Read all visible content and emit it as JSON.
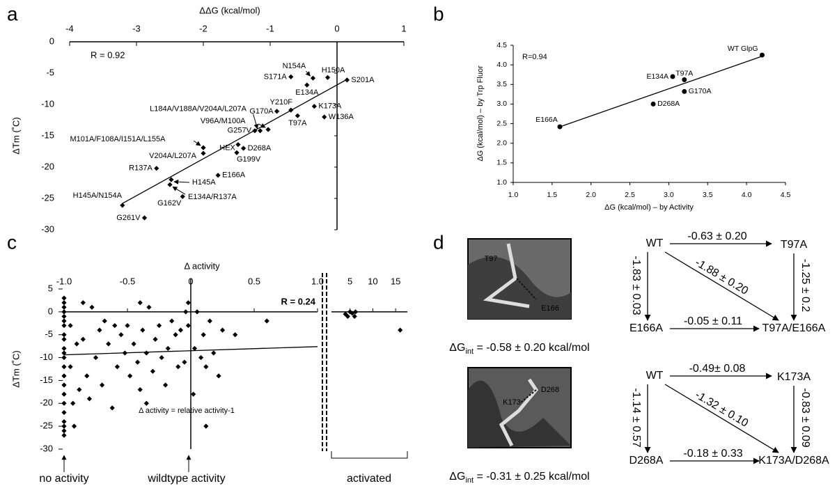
{
  "panel_labels": [
    "a",
    "b",
    "c",
    "d"
  ],
  "chart_data": [
    {
      "type": "scatter",
      "xlabel": "ΔΔG (kcal/mol)",
      "ylabel": "ΔTm (˚C)",
      "marker": "diamond",
      "color": "#000000",
      "xlim": [
        -4,
        1
      ],
      "xticks": [
        -4,
        -3,
        -2,
        -1,
        0,
        1
      ],
      "ylim": [
        -30,
        0
      ],
      "yticks": [
        0,
        -5,
        -10,
        -15,
        -20,
        -25,
        -30
      ],
      "x": [
        -0.36,
        -0.14,
        -0.69,
        0.15,
        -0.45,
        -0.34,
        -0.69,
        -0.9,
        -0.59,
        -0.19,
        -1.15,
        -1.03,
        -1.23,
        -2.0,
        -2.0,
        -1.48,
        -1.4,
        -1.5,
        -2.7,
        -1.78,
        -2.48,
        -2.5,
        -2.31,
        -3.21,
        -2.88
      ],
      "y": [
        -5.8,
        -5.7,
        -5.6,
        -6.1,
        -6.9,
        -10.3,
        -10.9,
        -11.1,
        -11.8,
        -12.0,
        -14.2,
        -14.0,
        -14.2,
        -16.9,
        -17.8,
        -16.4,
        -17.0,
        -17.7,
        -20.2,
        -21.3,
        -22.0,
        -22.8,
        -24.7,
        -26.1,
        -28.1
      ],
      "point_labels": [
        "N154A",
        "H150A",
        "S171A",
        "S201A",
        "E134A",
        "K173A",
        "Y210F",
        "G170A",
        "T97A",
        "W136A",
        "L184A/V188A/V204A/L207A",
        "V96A/M100A",
        "G257V",
        "M101A/F108A/I151A/L155A",
        "V204A/L207A",
        "HEX",
        "D268A",
        "G199V",
        "R137A",
        "E166A",
        "H145A",
        "E134A/R137A",
        "G162V",
        "H145A/N154A",
        "G261V"
      ],
      "trendline": {
        "x": [
          -3.21,
          0.15
        ],
        "y": [
          -25.8,
          -6.0
        ]
      },
      "annotations": [
        "R = 0.92"
      ]
    },
    {
      "type": "scatter",
      "xlabel": "ΔG (kcal/mol) – by Activity",
      "ylabel": "ΔG (kcal/mol) – by Trp Fluor",
      "marker": "circle",
      "color": "#000000",
      "xlim": [
        1,
        4.5
      ],
      "xticks": [
        {
          "value": 1,
          "label": "1.0"
        },
        1.5,
        {
          "value": 2,
          "label": "2.0"
        },
        2.5,
        {
          "value": 3,
          "label": "3.0"
        },
        3.5,
        {
          "value": 4,
          "label": "4.0"
        },
        4.5
      ],
      "ylim": [
        1,
        4.5
      ],
      "yticks": [
        {
          "value": 1,
          "label": "1.0"
        },
        1.5,
        {
          "value": 2,
          "label": "2.0"
        },
        2.5,
        {
          "value": 3,
          "label": "3.0"
        },
        3.5,
        {
          "value": 4,
          "label": "4.0"
        },
        4.5
      ],
      "x": [
        4.2,
        3.05,
        3.2,
        3.2,
        2.8,
        1.6
      ],
      "y": [
        4.25,
        3.7,
        3.62,
        3.32,
        3.0,
        2.42
      ],
      "point_labels": [
        "WT GlpG",
        "E134A",
        "T97A",
        "G170A",
        "D268A",
        "E166A"
      ],
      "trendline": {
        "x": [
          1.6,
          4.2
        ],
        "y": [
          2.42,
          4.22
        ]
      },
      "annotations": [
        "R=0.94"
      ]
    },
    {
      "type": "scatter",
      "xlabel": "Δ activity",
      "ylabel": "ΔTm (˚C)",
      "marker": "diamond",
      "color": "#000000",
      "xlim": [
        -1,
        1
      ],
      "xticks": [
        {
          "value": -1,
          "label": "-1.0"
        },
        -0.5,
        0,
        0.5,
        {
          "value": 1,
          "label": "1.0"
        }
      ],
      "ylim": [
        -30,
        5
      ],
      "yticks": [
        5,
        0,
        -5,
        -10,
        -15,
        -20,
        -25,
        -30
      ],
      "x": [
        -1,
        -1,
        -1,
        -1,
        -1,
        -1,
        -1,
        -1,
        -1,
        -1,
        -1,
        -1,
        -1,
        -1,
        -1,
        -1,
        -1,
        -1,
        -1,
        -1,
        -1,
        -1,
        -0.95,
        -0.95,
        -0.93,
        -0.92,
        -0.9,
        -0.88,
        -0.85,
        -0.85,
        -0.82,
        -0.8,
        -0.78,
        -0.75,
        -0.72,
        -0.7,
        -0.68,
        -0.65,
        -0.62,
        -0.6,
        -0.58,
        -0.55,
        -0.52,
        -0.5,
        -0.48,
        -0.45,
        -0.42,
        -0.4,
        -0.4,
        -0.38,
        -0.35,
        -0.33,
        -0.3,
        -0.28,
        -0.25,
        -0.23,
        -0.2,
        -0.18,
        -0.15,
        -0.12,
        -0.1,
        -0.08,
        -0.05,
        -0.04,
        -0.02,
        -0.02,
        0.02,
        0.03,
        0.05,
        0.08,
        0.1,
        0.12,
        0.15,
        0.18,
        0.22,
        0.25,
        0.35,
        0.6,
        0.12,
        -0.35
      ],
      "y": [
        3,
        2,
        1,
        0,
        -1,
        -2,
        -3,
        -5,
        -6,
        -8,
        -9,
        -10,
        -12,
        -14,
        -16,
        -18,
        -20,
        -22,
        -24,
        -25,
        -26,
        -27,
        -3,
        -12,
        -20,
        -25,
        -7,
        -17,
        2,
        -6,
        -14,
        -19,
        1,
        -10,
        -4,
        -16,
        -2,
        -7,
        -21,
        -3,
        -12,
        -5,
        -9,
        -3,
        -14,
        -7,
        -11,
        2,
        -17,
        -4,
        -9,
        1,
        -13,
        -6,
        -3,
        -10,
        -16,
        -8,
        -2,
        -5,
        -12,
        -4,
        -11,
        0,
        -3,
        2,
        -18,
        -8,
        0,
        -10,
        -5,
        -12,
        -2,
        -9,
        -14,
        -4,
        -5,
        -2,
        -25,
        -20
      ],
      "trendline": {
        "x": [
          -1,
          1
        ],
        "y": [
          -9.4,
          -7.6
        ]
      },
      "annotations": [
        "R = 0.24",
        "Δ activity = relative activity-1",
        "no activity",
        "wildtype activity"
      ]
    },
    {
      "type": "scatter",
      "marker": "diamond",
      "color": "#000000",
      "xlim": [
        2,
        16.5
      ],
      "xticks": [
        5,
        10,
        15
      ],
      "ylim": [
        -30,
        5
      ],
      "x": [
        4,
        4.5,
        5,
        5.5,
        6,
        6.2,
        16
      ],
      "y": [
        -0.5,
        -1,
        0,
        -0.3,
        -1,
        0,
        -4
      ],
      "annotations": [
        "activated"
      ]
    }
  ],
  "panel_d": {
    "images": [
      {
        "labels": [
          "T97",
          "E166"
        ]
      },
      {
        "labels": [
          "D268",
          "K173"
        ]
      }
    ],
    "dg_int": [
      {
        "symbol": "ΔG",
        "sub": "int",
        "text": " = -0.58 ± 0.20 kcal/mol"
      },
      {
        "symbol": "ΔG",
        "sub": "int",
        "text": " = -0.31 ± 0.25 kcal/mol"
      }
    ],
    "cycles": [
      {
        "nodes": [
          "WT",
          "T97A",
          "E166A",
          "T97A/E166A"
        ],
        "edges": [
          "-0.63 ± 0.20",
          "-1.83 ± 0.03",
          "-1.25 ± 0.2",
          "-1.88 ± 0.20",
          "-0.05 ± 0.11"
        ]
      },
      {
        "nodes": [
          "WT",
          "K173A",
          "D268A",
          "K173A/D268A"
        ],
        "edges": [
          "-0.49± 0.08",
          "-1.14 ± 0.57",
          "-0.83 ± 0.09",
          "-1.32 ± 0.10",
          "-0.18 ± 0.33"
        ]
      }
    ]
  }
}
